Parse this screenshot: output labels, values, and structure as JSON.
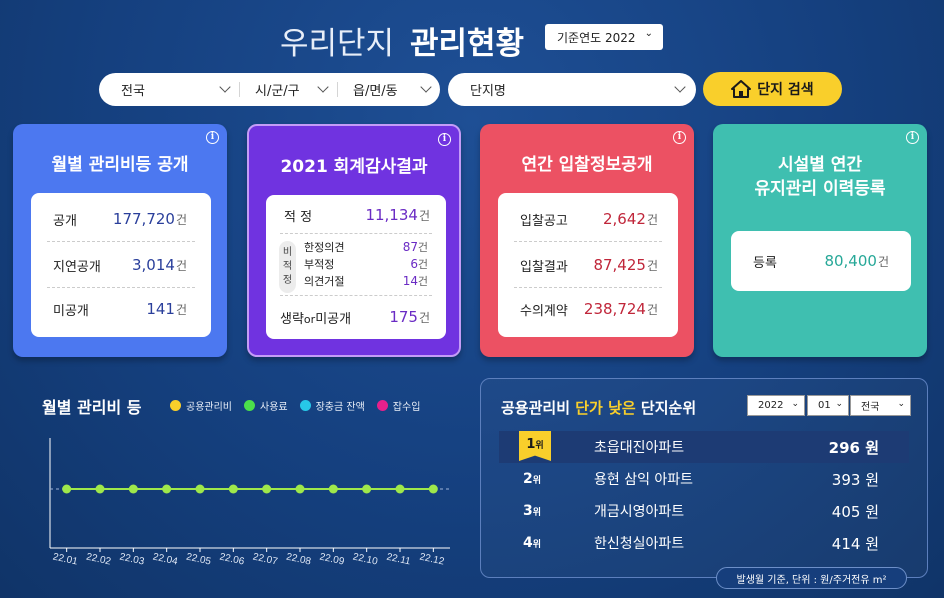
{
  "header": {
    "title_light": "우리단지",
    "title_bold": "관리현황",
    "year_select": "기준연도 2022"
  },
  "search": {
    "region1": "전국",
    "region2": "시/군/구",
    "region3": "읍/면/동",
    "danji": "단지명",
    "button": "단지 검색"
  },
  "cards": {
    "monthly": {
      "title": "월별 관리비등 공개",
      "rows": [
        {
          "label": "공개",
          "value": "177,720",
          "unit": "건"
        },
        {
          "label": "지연공개",
          "value": "3,014",
          "unit": "건"
        },
        {
          "label": "미공개",
          "value": "141",
          "unit": "건"
        }
      ]
    },
    "audit": {
      "title": "2021 회계감사결과",
      "top": {
        "label": "적 정",
        "value": "11,134",
        "unit": "건"
      },
      "tag": [
        "비",
        "적",
        "정"
      ],
      "sub": [
        {
          "label": "한정의견",
          "value": "87",
          "unit": "건"
        },
        {
          "label": "부적정",
          "value": "6",
          "unit": "건"
        },
        {
          "label": "의견거절",
          "value": "14",
          "unit": "건"
        }
      ],
      "bottom": {
        "label_a": "생략",
        "label_or": "or",
        "label_b": "미공개",
        "value": "175",
        "unit": "건"
      }
    },
    "bid": {
      "title": "연간 입찰정보공개",
      "rows": [
        {
          "label": "입찰공고",
          "value": "2,642",
          "unit": "건"
        },
        {
          "label": "입찰결과",
          "value": "87,425",
          "unit": "건"
        },
        {
          "label": "수의계약",
          "value": "238,724",
          "unit": "건"
        }
      ]
    },
    "facility": {
      "title_line1": "시설별 연간",
      "title_line2": "유지관리 이력등록",
      "row": {
        "label": "등록",
        "value": "80,400",
        "unit": "건"
      }
    },
    "info_glyph": "i"
  },
  "chart_data": {
    "type": "line",
    "title": "월별 관리비 등",
    "legend": [
      {
        "name": "공용관리비",
        "color": "#f9cf2b"
      },
      {
        "name": "사용료",
        "color": "#4be04b"
      },
      {
        "name": "장충금 잔액",
        "color": "#27c8e8"
      },
      {
        "name": "잡수입",
        "color": "#e8208c"
      }
    ],
    "categories": [
      "22.01",
      "22.02",
      "22.03",
      "22.04",
      "22.05",
      "22.06",
      "22.07",
      "22.08",
      "22.09",
      "22.10",
      "22.11",
      "22.12"
    ],
    "series": [
      {
        "name": "사용료",
        "color": "#9fe84b",
        "values": [
          0,
          0,
          0,
          0,
          0,
          0,
          0,
          0,
          0,
          0,
          0,
          0
        ]
      }
    ],
    "grid": false
  },
  "ranking": {
    "title_pre": "공용관리비",
    "title_hl": "단가 낮은",
    "title_post": "단지순위",
    "filters": {
      "year": "2022",
      "month": "01",
      "region": "전국"
    },
    "rows": [
      {
        "rank": "1",
        "suffix": "위",
        "name": "초읍대진아파트",
        "price": "296 원"
      },
      {
        "rank": "2",
        "suffix": "위",
        "name": "용현 삼익 아파트",
        "price": "393 원"
      },
      {
        "rank": "3",
        "suffix": "위",
        "name": "개금시영아파트",
        "price": "405 원"
      },
      {
        "rank": "4",
        "suffix": "위",
        "name": "한신청실아파트",
        "price": "414 원"
      }
    ],
    "footnote": "발생월 기준, 단위 : 원/주거전유 m²"
  }
}
